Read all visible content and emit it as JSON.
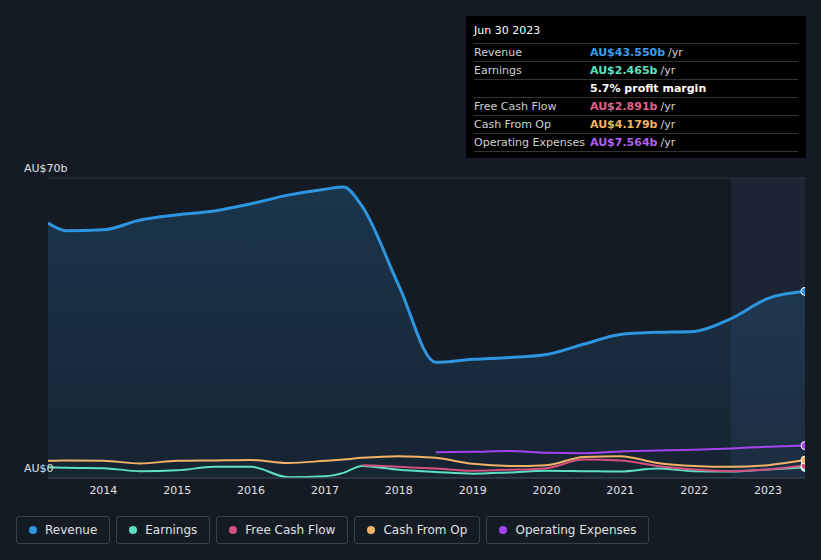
{
  "chart_data": {
    "type": "area",
    "x": [
      2013.25,
      2013.5,
      2014,
      2014.5,
      2015,
      2015.5,
      2016,
      2016.5,
      2017,
      2017.25,
      2017.5,
      2018,
      2018.5,
      2019,
      2019.5,
      2020,
      2020.5,
      2021,
      2021.5,
      2022,
      2022.5,
      2023,
      2023.5
    ],
    "series": [
      {
        "name": "Revenue",
        "color": "#2e95e0",
        "type": "area",
        "values": [
          59.5,
          57.7,
          57.9,
          60.2,
          61.4,
          62.3,
          64.0,
          66.0,
          67.4,
          67.9,
          63.5,
          44.9,
          27.0,
          27.7,
          28.1,
          28.8,
          31.2,
          33.5,
          34.0,
          34.2,
          37.2,
          41.9,
          43.55
        ]
      },
      {
        "name": "Earnings",
        "color": "#5de0c2",
        "type": "line",
        "values": [
          2.5,
          2.4,
          2.3,
          1.6,
          1.8,
          2.6,
          2.6,
          0.2,
          0.4,
          1.2,
          2.8,
          1.9,
          1.4,
          1.0,
          1.3,
          1.7,
          1.6,
          1.5,
          2.2,
          1.6,
          1.5,
          2.0,
          2.465
        ]
      },
      {
        "name": "Free Cash Flow",
        "color": "#d4507e",
        "type": "line",
        "values": [
          null,
          null,
          null,
          null,
          null,
          null,
          null,
          null,
          null,
          null,
          3.0,
          2.6,
          2.2,
          1.7,
          1.9,
          2.3,
          4.3,
          4.1,
          2.8,
          2.0,
          1.6,
          2.0,
          2.891
        ]
      },
      {
        "name": "Cash From Op",
        "color": "#f2b366",
        "type": "line",
        "values": [
          4.0,
          4.1,
          4.0,
          3.4,
          4.0,
          4.1,
          4.2,
          3.5,
          4.0,
          4.3,
          4.7,
          5.1,
          4.7,
          3.3,
          2.8,
          3.0,
          4.9,
          5.1,
          3.5,
          2.8,
          2.6,
          3.0,
          4.179
        ]
      },
      {
        "name": "Operating Expenses",
        "color": "#a445f0",
        "type": "line",
        "values": [
          null,
          null,
          null,
          null,
          null,
          null,
          null,
          null,
          null,
          null,
          null,
          null,
          6.0,
          6.1,
          6.3,
          5.9,
          5.8,
          6.2,
          6.4,
          6.6,
          6.9,
          7.3,
          7.564
        ]
      }
    ],
    "xlim": [
      2013.25,
      2023.5
    ],
    "xticks": [
      2014,
      2015,
      2016,
      2017,
      2018,
      2019,
      2020,
      2021,
      2022,
      2023
    ],
    "ylim": [
      0,
      70
    ],
    "yticks": [
      {
        "value": 0,
        "label": "AU$0"
      },
      {
        "value": 70,
        "label": "AU$70b"
      }
    ],
    "grid": true,
    "legend": "bottom",
    "highlight": [
      2022.5,
      2023.5
    ],
    "tooltip": {
      "title": "Jun 30 2023",
      "rows": [
        {
          "label": "Revenue",
          "value": "AU$43.550b",
          "unit": "/yr",
          "color": "#3a9cf0"
        },
        {
          "label": "Earnings",
          "value": "AU$2.465b",
          "unit": "/yr",
          "color": "#5de0c2"
        },
        {
          "value": "5.7% profit margin",
          "color": "#ffffff"
        },
        {
          "label": "Free Cash Flow",
          "value": "AU$2.891b",
          "unit": "/yr",
          "color": "#e0608e"
        },
        {
          "label": "Cash From Op",
          "value": "AU$4.179b",
          "unit": "/yr",
          "color": "#f2b366"
        },
        {
          "label": "Operating Expenses",
          "value": "AU$7.564b",
          "unit": "/yr",
          "color": "#b060f5"
        }
      ]
    }
  }
}
